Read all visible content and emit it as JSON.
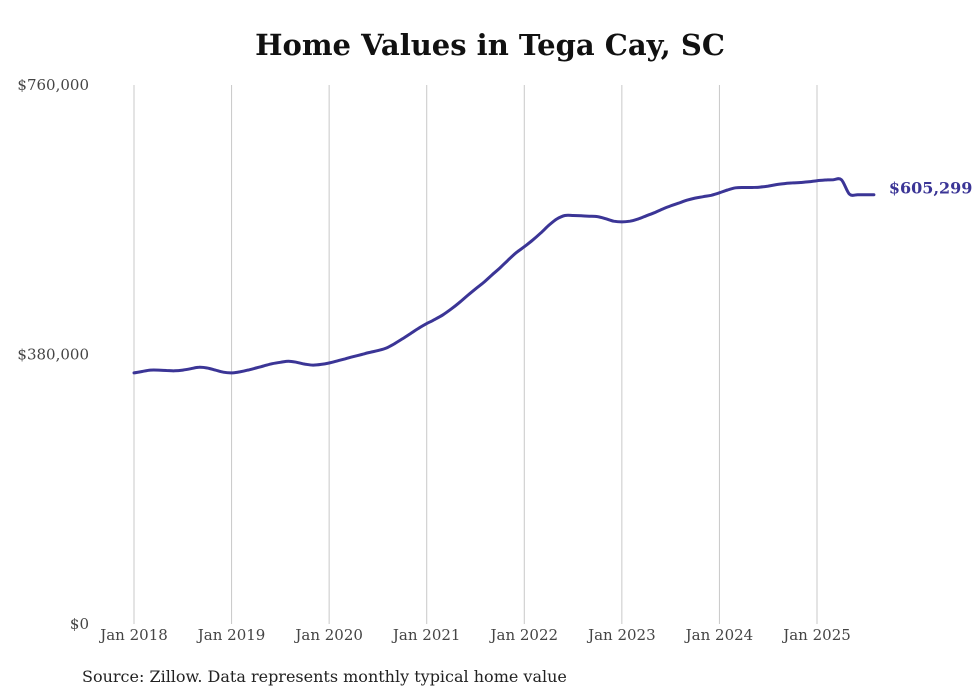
{
  "chart_data": {
    "type": "line",
    "title": "Home Values in Tega Cay, SC",
    "source": "Source: Zillow. Data represents monthly typical home value",
    "ylim": [
      0,
      760000
    ],
    "y_ticks": [
      {
        "value": 760000,
        "label": "$760,000"
      },
      {
        "value": 380000,
        "label": "$380,000"
      },
      {
        "value": 0,
        "label": "$0"
      }
    ],
    "x_ticks": [
      {
        "value": 2018.0,
        "label": "Jan 2018"
      },
      {
        "value": 2019.0,
        "label": "Jan 2019"
      },
      {
        "value": 2020.0,
        "label": "Jan 2020"
      },
      {
        "value": 2021.0,
        "label": "Jan 2021"
      },
      {
        "value": 2022.0,
        "label": "Jan 2022"
      },
      {
        "value": 2023.0,
        "label": "Jan 2023"
      },
      {
        "value": 2024.0,
        "label": "Jan 2024"
      },
      {
        "value": 2025.0,
        "label": "Jan 2025"
      }
    ],
    "grid": "vertical",
    "line_color": "#3b3596",
    "end_label": "$605,299",
    "series": [
      {
        "x": [
          "2018-01",
          "2018-02",
          "2018-03",
          "2018-04",
          "2018-05",
          "2018-06",
          "2018-07",
          "2018-08",
          "2018-09",
          "2018-10",
          "2018-11",
          "2018-12",
          "2019-01",
          "2019-02",
          "2019-03",
          "2019-04",
          "2019-05",
          "2019-06",
          "2019-07",
          "2019-08",
          "2019-09",
          "2019-10",
          "2019-11",
          "2019-12",
          "2020-01",
          "2020-02",
          "2020-03",
          "2020-04",
          "2020-05",
          "2020-06",
          "2020-07",
          "2020-08",
          "2020-09",
          "2020-10",
          "2020-11",
          "2020-12",
          "2021-01",
          "2021-02",
          "2021-03",
          "2021-04",
          "2021-05",
          "2021-06",
          "2021-07",
          "2021-08",
          "2021-09",
          "2021-10",
          "2021-11",
          "2021-12",
          "2022-01",
          "2022-02",
          "2022-03",
          "2022-04",
          "2022-05",
          "2022-06",
          "2022-07",
          "2022-08",
          "2022-09",
          "2022-10",
          "2022-11",
          "2022-12",
          "2023-01",
          "2023-02",
          "2023-03",
          "2023-04",
          "2023-05",
          "2023-06",
          "2023-07",
          "2023-08",
          "2023-09",
          "2023-10",
          "2023-11",
          "2023-12",
          "2024-01",
          "2024-02",
          "2024-03",
          "2024-04",
          "2024-05",
          "2024-06",
          "2024-07",
          "2024-08",
          "2024-09",
          "2024-10",
          "2024-11",
          "2024-12",
          "2025-01",
          "2025-02",
          "2025-03",
          "2025-04",
          "2025-05",
          "2025-06",
          "2025-07",
          "2025-08"
        ],
        "values": [
          354000,
          356000,
          358000,
          358000,
          357500,
          357000,
          358000,
          360000,
          362000,
          361000,
          358000,
          355000,
          354000,
          355500,
          358000,
          361000,
          364000,
          367000,
          369000,
          370500,
          369000,
          366500,
          365000,
          366000,
          368000,
          371000,
          374000,
          377000,
          380000,
          383000,
          385500,
          389000,
          395000,
          402000,
          409500,
          417000,
          423500,
          429500,
          436000,
          444000,
          453000,
          463000,
          472500,
          481500,
          492000,
          502000,
          513000,
          523500,
          532000,
          541000,
          551000,
          562000,
          571000,
          576000,
          576000,
          575500,
          575000,
          574500,
          571500,
          568000,
          567000,
          568000,
          571000,
          575500,
          580000,
          585000,
          589500,
          593500,
          597500,
          600500,
          602500,
          604500,
          608000,
          612000,
          615000,
          615500,
          615500,
          616000,
          617500,
          619500,
          621000,
          622000,
          622500,
          623500,
          625000,
          626000,
          626500,
          626500,
          606000,
          605299,
          605299,
          605299
        ]
      }
    ]
  }
}
